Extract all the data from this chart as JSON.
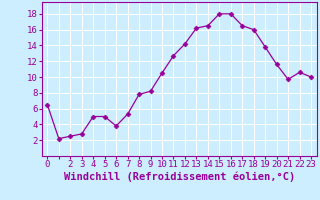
{
  "x": [
    0,
    1,
    2,
    3,
    4,
    5,
    6,
    7,
    8,
    9,
    10,
    11,
    12,
    13,
    14,
    15,
    16,
    17,
    18,
    19,
    20,
    21,
    22,
    23
  ],
  "y": [
    6.5,
    2.2,
    2.5,
    2.8,
    5.0,
    5.0,
    3.8,
    5.3,
    7.8,
    8.2,
    10.5,
    12.7,
    14.2,
    16.2,
    16.5,
    18.0,
    18.0,
    16.5,
    16.0,
    13.8,
    11.6,
    9.7,
    10.6,
    10.0
  ],
  "line_color": "#990099",
  "marker": "D",
  "marker_size": 2.5,
  "bg_color": "#cceeff",
  "grid_color": "#ffffff",
  "xlabel": "Windchill (Refroidissement éolien,°C)",
  "xlabel_color": "#990099",
  "xlabel_fontsize": 7.5,
  "ylim": [
    0,
    19.5
  ],
  "xlim": [
    -0.5,
    23.5
  ],
  "tick_fontsize": 6.5,
  "axis_color": "#990099",
  "xtick_labels": [
    "0",
    "",
    "2",
    "3",
    "4",
    "5",
    "6",
    "7",
    "8",
    "9",
    "10",
    "11",
    "12",
    "13",
    "14",
    "15",
    "16",
    "17",
    "18",
    "19",
    "20",
    "21",
    "22",
    "23"
  ],
  "yticks": [
    2,
    4,
    6,
    8,
    10,
    12,
    14,
    16,
    18
  ],
  "ytick_labels": [
    "2",
    "4",
    "6",
    "8",
    "10",
    "12",
    "14",
    "16",
    "18"
  ]
}
